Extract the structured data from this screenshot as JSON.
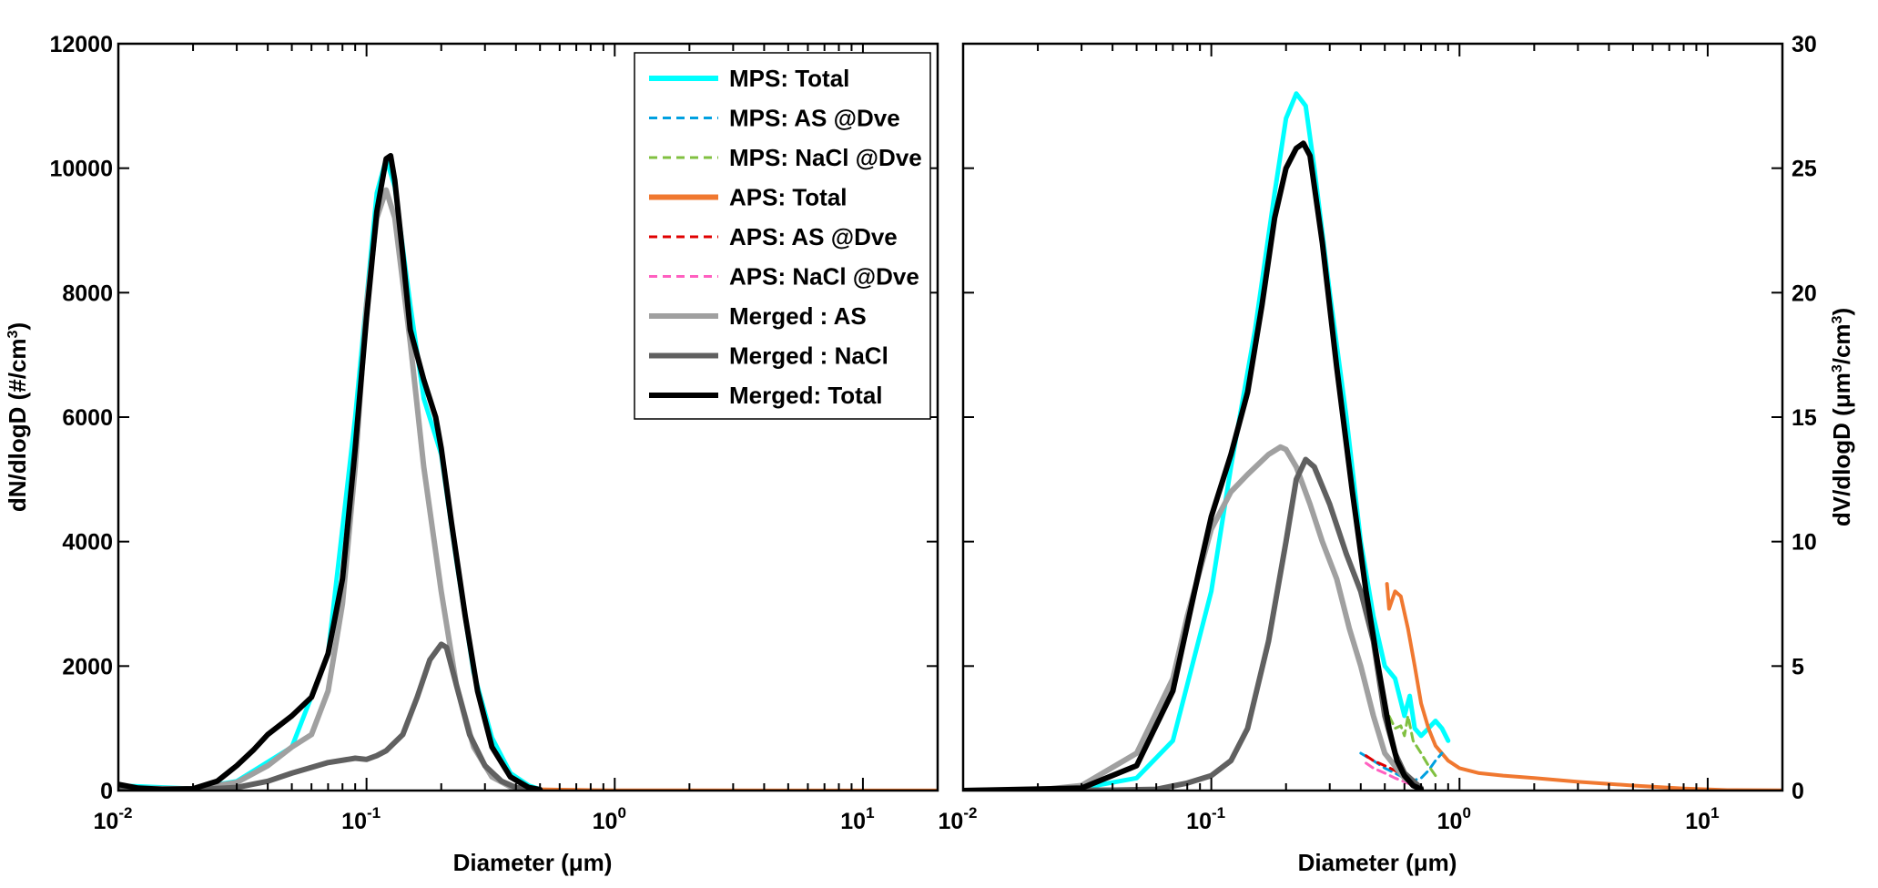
{
  "chart_data": [
    {
      "type": "line",
      "xlabel": "Diameter (μm)",
      "ylabel": "dN/dlogD (#/cm3)",
      "xscale": "log",
      "xlim": [
        0.01,
        20
      ],
      "ylim": [
        0,
        12000
      ],
      "yticks": [
        0,
        2000,
        4000,
        6000,
        8000,
        10000,
        12000
      ],
      "xticks": [
        0.01,
        0.1,
        1,
        10
      ],
      "xtick_labels": [
        {
          "base": "10",
          "exp": "-2"
        },
        {
          "base": "10",
          "exp": "-1"
        },
        {
          "base": "10",
          "exp": "0"
        },
        {
          "base": "10",
          "exp": "1"
        }
      ],
      "grid": false,
      "legend": {
        "placement": "top-right",
        "entries": [
          {
            "name": "MPS: Total",
            "color": "#00ffff",
            "style": "solid"
          },
          {
            "name": "MPS: AS @Dve",
            "color": "#00a0e0",
            "style": "dashed"
          },
          {
            "name": "MPS: NaCl @Dve",
            "color": "#80c040",
            "style": "dashed"
          },
          {
            "name": "APS: Total",
            "color": "#f07830",
            "style": "solid"
          },
          {
            "name": "APS: AS @Dve",
            "color": "#e00000",
            "style": "dashed"
          },
          {
            "name": "APS: NaCl @Dve",
            "color": "#ff60c0",
            "style": "dashed"
          },
          {
            "name": "Merged : AS",
            "color": "#a0a0a0",
            "style": "solid"
          },
          {
            "name": "Merged : NaCl",
            "color": "#606060",
            "style": "solid"
          },
          {
            "name": "Merged: Total",
            "color": "#000000",
            "style": "solid"
          }
        ]
      },
      "series": [
        {
          "key": "mps_total",
          "color": "#00ffff",
          "style": "solid",
          "width": 5,
          "x": [
            0.01,
            0.02,
            0.03,
            0.05,
            0.07,
            0.09,
            0.11,
            0.12,
            0.13,
            0.15,
            0.17,
            0.2,
            0.23,
            0.27,
            0.32,
            0.38,
            0.45,
            0.5
          ],
          "y": [
            80,
            30,
            150,
            700,
            2200,
            6000,
            9600,
            10150,
            9700,
            7800,
            6300,
            5400,
            3700,
            1900,
            850,
            280,
            80,
            20
          ]
        },
        {
          "key": "aps_total",
          "color": "#f07830",
          "style": "solid",
          "width": 4,
          "x": [
            0.5,
            0.6,
            0.8,
            1,
            2,
            5,
            10,
            20
          ],
          "y": [
            20,
            15,
            8,
            5,
            3,
            2,
            1,
            1
          ]
        },
        {
          "key": "merged_as",
          "color": "#a0a0a0",
          "style": "solid",
          "width": 6,
          "x": [
            0.01,
            0.02,
            0.03,
            0.04,
            0.05,
            0.06,
            0.07,
            0.08,
            0.09,
            0.1,
            0.11,
            0.12,
            0.13,
            0.15,
            0.17,
            0.2,
            0.23,
            0.27,
            0.32,
            0.38,
            0.45
          ],
          "y": [
            40,
            25,
            130,
            400,
            700,
            900,
            1600,
            3000,
            5200,
            7800,
            9200,
            9650,
            9200,
            7200,
            5200,
            3200,
            1700,
            700,
            220,
            60,
            15
          ]
        },
        {
          "key": "merged_nacl",
          "color": "#606060",
          "style": "solid",
          "width": 6,
          "x": [
            0.01,
            0.02,
            0.03,
            0.04,
            0.05,
            0.07,
            0.09,
            0.1,
            0.11,
            0.12,
            0.14,
            0.16,
            0.18,
            0.2,
            0.21,
            0.23,
            0.26,
            0.3,
            0.35,
            0.4,
            0.5
          ],
          "y": [
            10,
            15,
            50,
            150,
            280,
            450,
            520,
            500,
            560,
            640,
            900,
            1500,
            2100,
            2350,
            2300,
            1700,
            900,
            400,
            150,
            50,
            10
          ]
        },
        {
          "key": "merged_total",
          "color": "#000000",
          "style": "solid",
          "width": 6,
          "x": [
            0.01,
            0.012,
            0.015,
            0.02,
            0.025,
            0.03,
            0.035,
            0.04,
            0.05,
            0.06,
            0.07,
            0.08,
            0.09,
            0.1,
            0.11,
            0.12,
            0.125,
            0.13,
            0.14,
            0.15,
            0.17,
            0.19,
            0.2,
            0.22,
            0.25,
            0.28,
            0.32,
            0.38,
            0.45,
            0.5
          ],
          "y": [
            100,
            40,
            20,
            30,
            150,
            400,
            650,
            900,
            1200,
            1500,
            2200,
            3400,
            5500,
            7600,
            9300,
            10150,
            10200,
            9800,
            8600,
            7400,
            6600,
            6000,
            5500,
            4300,
            2800,
            1600,
            700,
            220,
            50,
            15
          ]
        }
      ]
    },
    {
      "type": "line",
      "xlabel": "Diameter (μm)",
      "ylabel": "dV/dlogD (μm3/cm3)",
      "xscale": "log",
      "xlim": [
        0.01,
        20
      ],
      "ylim": [
        0,
        30
      ],
      "yticks": [
        0,
        5,
        10,
        15,
        20,
        25,
        30
      ],
      "xticks": [
        0.01,
        0.1,
        1,
        10
      ],
      "xtick_labels": [
        {
          "base": "10",
          "exp": "-2"
        },
        {
          "base": "10",
          "exp": "-1"
        },
        {
          "base": "10",
          "exp": "0"
        },
        {
          "base": "10",
          "exp": "1"
        }
      ],
      "grid": false,
      "series": [
        {
          "key": "mps_total",
          "color": "#00ffff",
          "style": "solid",
          "width": 5,
          "x": [
            0.03,
            0.05,
            0.07,
            0.1,
            0.12,
            0.15,
            0.18,
            0.2,
            0.22,
            0.24,
            0.26,
            0.3,
            0.35,
            0.4,
            0.45,
            0.5,
            0.55,
            0.6,
            0.63,
            0.66,
            0.7,
            0.75,
            0.8,
            0.85,
            0.9
          ],
          "y": [
            0.1,
            0.5,
            2,
            8,
            13,
            18.5,
            24,
            27,
            28,
            27.5,
            25,
            20,
            15,
            10,
            7,
            5,
            4.5,
            3,
            3.8,
            2.5,
            2.2,
            2.5,
            2.8,
            2.5,
            2
          ]
        },
        {
          "key": "aps_total",
          "color": "#f07830",
          "style": "solid",
          "width": 4,
          "x": [
            0.51,
            0.52,
            0.55,
            0.58,
            0.62,
            0.66,
            0.7,
            0.75,
            0.8,
            0.9,
            1,
            1.2,
            1.5,
            2,
            3,
            5,
            8,
            12,
            20
          ],
          "y": [
            8.3,
            7.3,
            8,
            7.8,
            6.5,
            5,
            3.5,
            2.5,
            1.8,
            1.2,
            0.9,
            0.7,
            0.6,
            0.5,
            0.35,
            0.2,
            0.08,
            0.02,
            0.01
          ]
        },
        {
          "key": "mps_as",
          "color": "#00a0e0",
          "style": "dashed",
          "width": 3,
          "x": [
            0.4,
            0.45,
            0.5,
            0.55,
            0.6,
            0.65,
            0.7,
            0.75,
            0.8,
            0.85
          ],
          "y": [
            1.5,
            1.2,
            0.9,
            0.7,
            0.5,
            0.4,
            0.5,
            0.8,
            1.2,
            1.5
          ]
        },
        {
          "key": "mps_nacl",
          "color": "#80c040",
          "style": "dashed",
          "width": 3,
          "x": [
            0.5,
            0.52,
            0.55,
            0.58,
            0.6,
            0.62,
            0.65,
            0.7,
            0.75,
            0.8
          ],
          "y": [
            3.5,
            3.0,
            2.5,
            2.6,
            2.2,
            3.0,
            2.0,
            1.5,
            1.0,
            0.6
          ]
        },
        {
          "key": "aps_as",
          "color": "#e00000",
          "style": "dashed",
          "width": 3,
          "x": [
            0.42,
            0.45,
            0.5,
            0.55,
            0.6,
            0.65
          ],
          "y": [
            1.4,
            1.2,
            1.0,
            0.8,
            0.6,
            0.4
          ]
        },
        {
          "key": "aps_nacl",
          "color": "#ff60c0",
          "style": "dashed",
          "width": 3,
          "x": [
            0.42,
            0.45,
            0.5,
            0.55,
            0.6,
            0.65
          ],
          "y": [
            1.1,
            0.9,
            0.7,
            0.5,
            0.35,
            0.2
          ]
        },
        {
          "key": "merged_as",
          "color": "#a0a0a0",
          "style": "solid",
          "width": 6,
          "x": [
            0.01,
            0.02,
            0.03,
            0.05,
            0.07,
            0.08,
            0.1,
            0.12,
            0.14,
            0.17,
            0.19,
            0.2,
            0.22,
            0.25,
            0.28,
            0.32,
            0.36,
            0.4,
            0.45,
            0.5,
            0.6,
            0.7
          ],
          "y": [
            0,
            0.02,
            0.2,
            1.5,
            4.5,
            7,
            10.5,
            12,
            12.7,
            13.5,
            13.8,
            13.7,
            13,
            11.5,
            10,
            8.5,
            6.5,
            5,
            3,
            1.5,
            0.5,
            0.1
          ]
        },
        {
          "key": "merged_nacl",
          "color": "#606060",
          "style": "solid",
          "width": 6,
          "x": [
            0.01,
            0.04,
            0.06,
            0.08,
            0.1,
            0.12,
            0.14,
            0.17,
            0.2,
            0.22,
            0.24,
            0.26,
            0.3,
            0.35,
            0.4,
            0.45,
            0.5,
            0.55,
            0.6,
            0.7
          ],
          "y": [
            0,
            0.02,
            0.05,
            0.3,
            0.6,
            1.2,
            2.5,
            6,
            10,
            12.5,
            13.3,
            13,
            11.5,
            9.5,
            8,
            6,
            3,
            1.5,
            0.7,
            0.1
          ]
        },
        {
          "key": "merged_total",
          "color": "#000000",
          "style": "solid",
          "width": 6,
          "x": [
            0.01,
            0.03,
            0.05,
            0.07,
            0.09,
            0.1,
            0.12,
            0.14,
            0.16,
            0.18,
            0.2,
            0.22,
            0.235,
            0.25,
            0.28,
            0.32,
            0.37,
            0.42,
            0.47,
            0.52,
            0.56,
            0.6,
            0.65,
            0.7
          ],
          "y": [
            0,
            0.1,
            1,
            4,
            9,
            11,
            13.5,
            16,
            19.5,
            23,
            25,
            25.8,
            26,
            25.5,
            22,
            17,
            12,
            8,
            5,
            2.5,
            1.2,
            0.6,
            0.2,
            0.05
          ]
        }
      ]
    }
  ]
}
